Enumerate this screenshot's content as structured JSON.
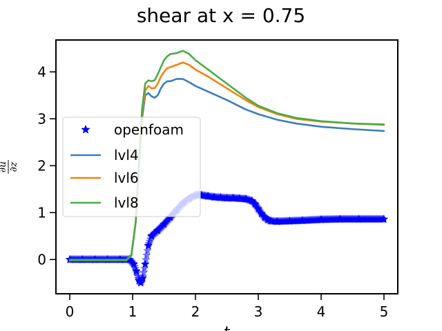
{
  "chart_data": {
    "type": "line",
    "title": "shear at x = 0.75",
    "xlabel": "t",
    "ylabel": "∂u/∂z",
    "ylabel_num": "∂u",
    "ylabel_den": "∂z",
    "xlim": [
      -0.22,
      5.22
    ],
    "ylim": [
      -0.73,
      4.68
    ],
    "xticks": [
      0,
      1,
      2,
      3,
      4,
      5
    ],
    "xtick_labels": [
      "0",
      "1",
      "2",
      "3",
      "4",
      "5"
    ],
    "yticks": [
      0,
      1,
      2,
      3,
      4
    ],
    "ytick_labels": [
      "0",
      "1",
      "2",
      "3",
      "4"
    ],
    "grid": false,
    "legend_position": "center-left",
    "series": [
      {
        "name": "openfoam",
        "style": "star-markers",
        "color": "#0000ff",
        "x": [
          0.0,
          0.2,
          0.4,
          0.6,
          0.8,
          0.95,
          1.02,
          1.06,
          1.1,
          1.13,
          1.16,
          1.2,
          1.25,
          1.3,
          1.4,
          1.5,
          1.6,
          1.7,
          1.8,
          1.9,
          2.0,
          2.05,
          2.1,
          2.2,
          2.3,
          2.4,
          2.5,
          2.6,
          2.7,
          2.8,
          2.9,
          2.95,
          3.0,
          3.05,
          3.1,
          3.15,
          3.2,
          3.3,
          3.5,
          3.7,
          4.0,
          4.3,
          4.6,
          5.0
        ],
        "y": [
          0.0,
          0.0,
          0.0,
          0.0,
          0.0,
          0.0,
          -0.1,
          -0.25,
          -0.45,
          -0.5,
          -0.4,
          -0.1,
          0.3,
          0.5,
          0.62,
          0.75,
          0.9,
          1.05,
          1.2,
          1.3,
          1.37,
          1.38,
          1.37,
          1.35,
          1.33,
          1.32,
          1.31,
          1.31,
          1.3,
          1.29,
          1.25,
          1.18,
          1.08,
          0.98,
          0.9,
          0.85,
          0.82,
          0.81,
          0.82,
          0.83,
          0.85,
          0.86,
          0.86,
          0.86
        ]
      },
      {
        "name": "lvl4",
        "style": "line",
        "color": "#3b7dba",
        "x": [
          0.0,
          0.9,
          0.98,
          1.05,
          1.1,
          1.15,
          1.2,
          1.25,
          1.3,
          1.35,
          1.4,
          1.45,
          1.5,
          1.55,
          1.6,
          1.7,
          1.8,
          1.9,
          2.0,
          2.2,
          2.5,
          2.8,
          3.0,
          3.3,
          3.6,
          4.0,
          4.5,
          5.0
        ],
        "y": [
          0.0,
          0.0,
          0.1,
          0.8,
          2.0,
          3.0,
          3.5,
          3.55,
          3.48,
          3.45,
          3.5,
          3.65,
          3.75,
          3.8,
          3.8,
          3.85,
          3.85,
          3.78,
          3.7,
          3.58,
          3.4,
          3.2,
          3.1,
          2.98,
          2.9,
          2.83,
          2.78,
          2.74
        ]
      },
      {
        "name": "lvl6",
        "style": "line",
        "color": "#f5820d",
        "x": [
          0.0,
          0.9,
          0.98,
          1.05,
          1.1,
          1.15,
          1.2,
          1.25,
          1.3,
          1.35,
          1.4,
          1.45,
          1.5,
          1.55,
          1.6,
          1.7,
          1.8,
          1.9,
          2.0,
          2.2,
          2.5,
          2.8,
          3.0,
          3.3,
          3.6,
          4.0,
          4.5,
          5.0
        ],
        "y": [
          -0.02,
          -0.02,
          0.08,
          0.8,
          2.0,
          3.1,
          3.6,
          3.7,
          3.65,
          3.65,
          3.75,
          3.9,
          4.0,
          4.08,
          4.1,
          4.15,
          4.2,
          4.15,
          4.05,
          3.9,
          3.65,
          3.4,
          3.25,
          3.1,
          3.0,
          2.94,
          2.9,
          2.87
        ]
      },
      {
        "name": "lvl8",
        "style": "line",
        "color": "#4aab45",
        "x": [
          0.0,
          0.9,
          0.98,
          1.05,
          1.1,
          1.15,
          1.2,
          1.25,
          1.3,
          1.35,
          1.4,
          1.45,
          1.5,
          1.55,
          1.6,
          1.7,
          1.8,
          1.9,
          2.0,
          2.2,
          2.5,
          2.8,
          3.0,
          3.3,
          3.6,
          4.0,
          4.5,
          5.0
        ],
        "y": [
          -0.02,
          -0.02,
          0.08,
          0.8,
          2.0,
          3.2,
          3.75,
          3.82,
          3.8,
          3.82,
          3.95,
          4.1,
          4.25,
          4.33,
          4.38,
          4.4,
          4.45,
          4.38,
          4.25,
          4.05,
          3.75,
          3.45,
          3.28,
          3.12,
          3.02,
          2.95,
          2.9,
          2.88
        ]
      }
    ]
  }
}
